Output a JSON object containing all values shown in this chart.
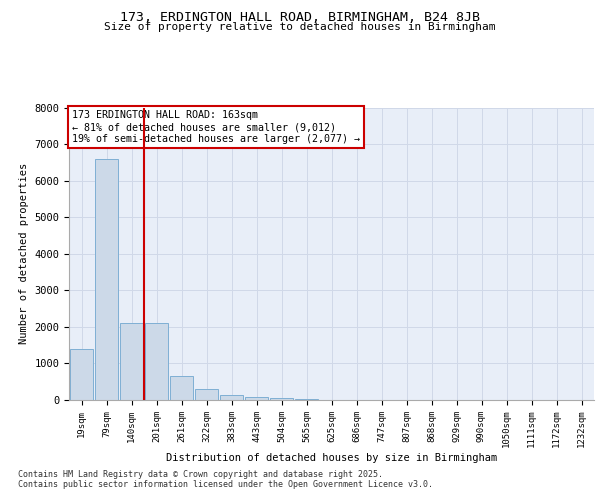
{
  "title1": "173, ERDINGTON HALL ROAD, BIRMINGHAM, B24 8JB",
  "title2": "Size of property relative to detached houses in Birmingham",
  "xlabel": "Distribution of detached houses by size in Birmingham",
  "ylabel": "Number of detached properties",
  "categories": [
    "19sqm",
    "79sqm",
    "140sqm",
    "201sqm",
    "261sqm",
    "322sqm",
    "383sqm",
    "443sqm",
    "504sqm",
    "565sqm",
    "625sqm",
    "686sqm",
    "747sqm",
    "807sqm",
    "868sqm",
    "929sqm",
    "990sqm",
    "1050sqm",
    "1111sqm",
    "1172sqm",
    "1232sqm"
  ],
  "values": [
    1400,
    6600,
    2100,
    2100,
    650,
    300,
    130,
    80,
    60,
    30,
    10,
    5,
    3,
    2,
    1,
    1,
    1,
    0,
    0,
    0,
    0
  ],
  "bar_color": "#ccd9e8",
  "bar_edge_color": "#7fafd4",
  "vline_x": 2.5,
  "vline_color": "#cc0000",
  "annotation_text": "173 ERDINGTON HALL ROAD: 163sqm\n← 81% of detached houses are smaller (9,012)\n19% of semi-detached houses are larger (2,077) →",
  "annotation_box_color": "#cc0000",
  "grid_color": "#d0d8e8",
  "background_color": "#e8eef8",
  "ylim": [
    0,
    8000
  ],
  "yticks": [
    0,
    1000,
    2000,
    3000,
    4000,
    5000,
    6000,
    7000,
    8000
  ],
  "footer_line1": "Contains HM Land Registry data © Crown copyright and database right 2025.",
  "footer_line2": "Contains public sector information licensed under the Open Government Licence v3.0."
}
